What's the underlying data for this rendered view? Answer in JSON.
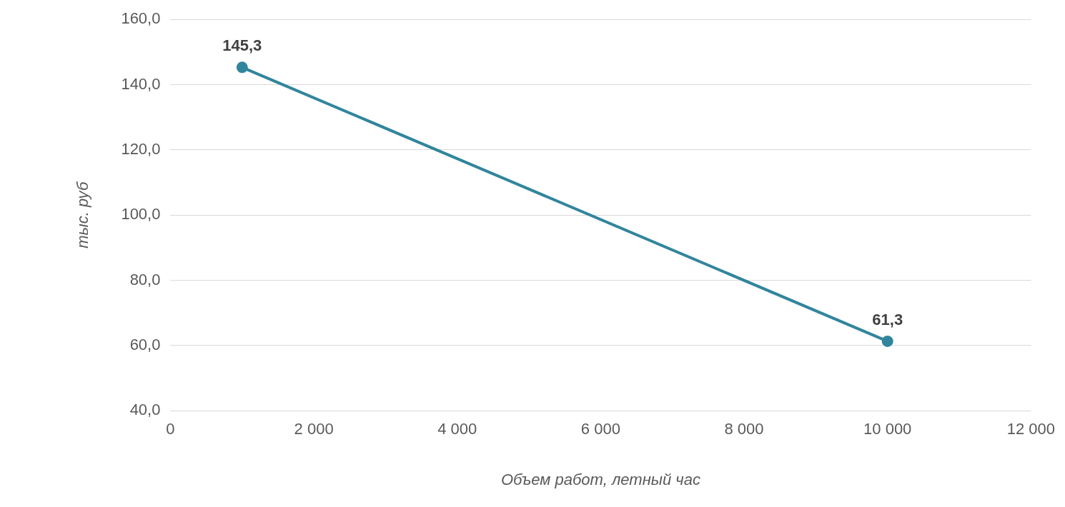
{
  "chart_data": {
    "type": "line",
    "xlabel": "Объем работ, летный час",
    "ylabel": "тыс. руб",
    "x": [
      1000,
      10000
    ],
    "series": [
      {
        "color": "#31859c",
        "values": [
          145.3,
          61.3
        ],
        "value_labels": [
          "145,3",
          "61,3"
        ]
      }
    ],
    "xlim": [
      0,
      12000
    ],
    "xticks": [
      0,
      {
        "value": 2000,
        "label": "2 000"
      },
      {
        "value": 4000,
        "label": "4 000"
      },
      {
        "value": 6000,
        "label": "6 000"
      },
      {
        "value": 8000,
        "label": "8 000"
      },
      {
        "value": 10000,
        "label": "10 000"
      },
      {
        "value": 12000,
        "label": "12 000"
      }
    ],
    "ylim": [
      40,
      160
    ],
    "yticks": [
      {
        "value": 40,
        "label": "40,0"
      },
      {
        "value": 60,
        "label": "60,0"
      },
      {
        "value": 80,
        "label": "80,0"
      },
      {
        "value": 100,
        "label": "100,0"
      },
      {
        "value": 120,
        "label": "120,0"
      },
      {
        "value": 140,
        "label": "140,0"
      },
      {
        "value": 160,
        "label": "160,0"
      }
    ],
    "grid": "y",
    "marker": "circle",
    "line_style": "solid"
  }
}
